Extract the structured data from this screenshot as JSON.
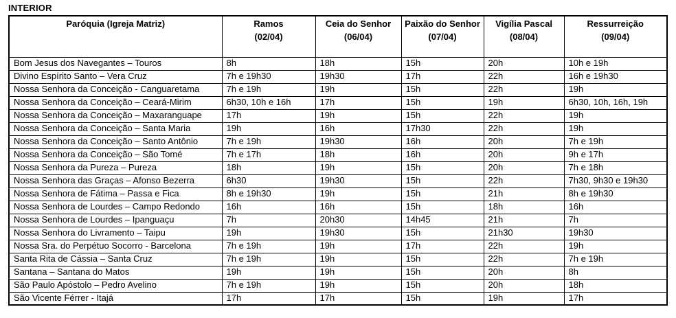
{
  "page": {
    "title": "INTERIOR"
  },
  "table": {
    "columns": [
      {
        "title": "Paróquia (Igreja Matriz)",
        "date": ""
      },
      {
        "title": "Ramos",
        "date": "(02/04)"
      },
      {
        "title": "Ceia do Senhor",
        "date": "(06/04)"
      },
      {
        "title": "Paixão do Senhor",
        "date": "(07/04)"
      },
      {
        "title": "Vigília Pascal",
        "date": "(08/04)"
      },
      {
        "title": "Ressurreição",
        "date": "(09/04)"
      }
    ],
    "rows": [
      [
        "Bom Jesus dos Navegantes – Touros",
        "8h",
        "18h",
        "15h",
        "20h",
        "10h e 19h"
      ],
      [
        "Divino Espírito Santo – Vera Cruz",
        "7h e 19h30",
        "19h30",
        "17h",
        "22h",
        "16h e 19h30"
      ],
      [
        "Nossa Senhora da Conceição - Canguaretama",
        "7h e 19h",
        "19h",
        "15h",
        "22h",
        "19h"
      ],
      [
        "Nossa Senhora da Conceição – Ceará-Mirim",
        "6h30, 10h e 16h",
        "17h",
        "15h",
        "19h",
        "6h30, 10h, 16h, 19h"
      ],
      [
        "Nossa Senhora da Conceição – Maxaranguape",
        "17h",
        "19h",
        "15h",
        "22h",
        "19h"
      ],
      [
        "Nossa Senhora da Conceição – Santa Maria",
        "19h",
        "16h",
        "17h30",
        "22h",
        "19h"
      ],
      [
        "Nossa Senhora da Conceição – Santo Antônio",
        "7h e 19h",
        "19h30",
        "16h",
        "20h",
        "7h e 19h"
      ],
      [
        "Nossa Senhora da Conceição – São Tomé",
        "7h e 17h",
        "18h",
        "16h",
        "20h",
        "9h e 17h"
      ],
      [
        "Nossa Senhora da Pureza – Pureza",
        "18h",
        "19h",
        "15h",
        "20h",
        "7h e 18h"
      ],
      [
        "Nossa Senhora das Graças – Afonso Bezerra",
        "6h30",
        "19h30",
        "15h",
        "22h",
        "7h30, 9h30 e 19h30"
      ],
      [
        "Nossa Senhora de Fátima – Passa e Fica",
        "8h e 19h30",
        "19h",
        "15h",
        "21h",
        "8h e 19h30"
      ],
      [
        "Nossa Senhora de Lourdes – Campo Redondo",
        "16h",
        "16h",
        "15h",
        "18h",
        "16h"
      ],
      [
        "Nossa Senhora de Lourdes – Ipanguaçu",
        "7h",
        "20h30",
        "14h45",
        "21h",
        "7h"
      ],
      [
        "Nossa Senhora do Livramento – Taipu",
        "19h",
        "19h30",
        "15h",
        "21h30",
        "19h30"
      ],
      [
        "Nossa Sra. do Perpétuo Socorro - Barcelona",
        "7h e 19h",
        "19h",
        "17h",
        "22h",
        "19h"
      ],
      [
        "Santa Rita de Cássia – Santa Cruz",
        "7h e 19h",
        "19h",
        "15h",
        "22h",
        "7h e 19h"
      ],
      [
        "Santana – Santana do Matos",
        "19h",
        "19h",
        "15h",
        "20h",
        "8h"
      ],
      [
        "São Paulo Apóstolo – Pedro Avelino",
        "7h e 19h",
        "19h",
        "15h",
        "20h",
        "18h"
      ],
      [
        "São Vicente Férrer - Itajá",
        "17h",
        "17h",
        "15h",
        "19h",
        "17h"
      ]
    ]
  }
}
